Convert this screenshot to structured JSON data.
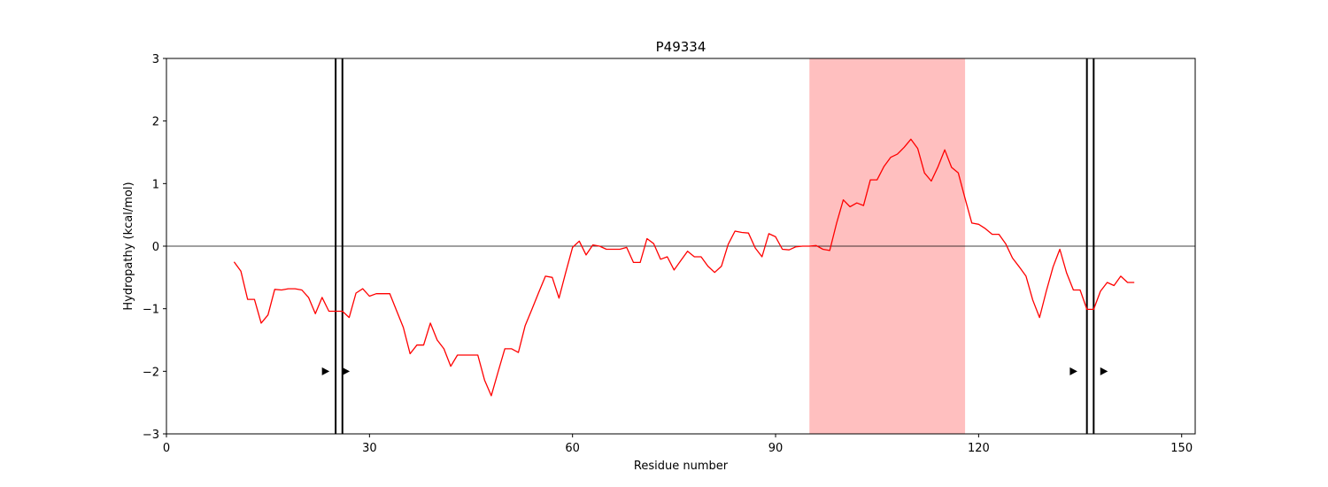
{
  "chart_data": {
    "type": "line",
    "title": "P49334",
    "xlabel": "Residue number",
    "ylabel": "Hydropathy (kcal/mol)",
    "xlim": [
      0,
      152
    ],
    "ylim": [
      -3,
      3
    ],
    "xticks": [
      0,
      30,
      60,
      90,
      120,
      150
    ],
    "yticks": [
      -3,
      -2,
      -1,
      0,
      1,
      2,
      3
    ],
    "ytick_labels": [
      "−3",
      "−2",
      "−1",
      "0",
      "1",
      "2",
      "3"
    ],
    "zero_line": 0,
    "line_color": "#ff0000",
    "highlight_color": "#ffbfbf",
    "highlight_region": [
      95,
      118
    ],
    "vertical_lines": [
      25,
      26,
      136,
      137
    ],
    "markers": [
      {
        "x": 23.5,
        "y": -2
      },
      {
        "x": 26.5,
        "y": -2
      },
      {
        "x": 134,
        "y": -2
      },
      {
        "x": 138.5,
        "y": -2
      }
    ],
    "series": [
      {
        "name": "hydropathy",
        "x": [
          10,
          11,
          12,
          13,
          14,
          15,
          16,
          17,
          18,
          19,
          20,
          21,
          22,
          23,
          24,
          25,
          26,
          27,
          28,
          29,
          30,
          31,
          32,
          33,
          34,
          35,
          36,
          37,
          38,
          39,
          40,
          41,
          42,
          43,
          44,
          45,
          46,
          47,
          48,
          49,
          50,
          51,
          52,
          53,
          54,
          55,
          56,
          57,
          58,
          59,
          60,
          61,
          62,
          63,
          64,
          65,
          66,
          67,
          68,
          69,
          70,
          71,
          72,
          73,
          74,
          75,
          76,
          77,
          78,
          79,
          80,
          81,
          82,
          83,
          84,
          85,
          86,
          87,
          88,
          89,
          90,
          91,
          92,
          93,
          94,
          95,
          96,
          97,
          98,
          99,
          100,
          101,
          102,
          103,
          104,
          105,
          106,
          107,
          108,
          109,
          110,
          111,
          112,
          113,
          114,
          115,
          116,
          117,
          118,
          119,
          120,
          121,
          122,
          123,
          124,
          125,
          126,
          127,
          128,
          129,
          130,
          131,
          132,
          133,
          134,
          135,
          136,
          137,
          138,
          139,
          140,
          141,
          142,
          143
        ],
        "values": [
          -0.25,
          -0.4,
          -0.85,
          -0.85,
          -1.23,
          -1.1,
          -0.69,
          -0.7,
          -0.68,
          -0.68,
          -0.7,
          -0.82,
          -1.08,
          -0.82,
          -1.04,
          -1.04,
          -1.04,
          -1.14,
          -0.75,
          -0.68,
          -0.8,
          -0.76,
          -0.76,
          -0.76,
          -1.03,
          -1.3,
          -1.72,
          -1.58,
          -1.58,
          -1.23,
          -1.5,
          -1.64,
          -1.92,
          -1.74,
          -1.74,
          -1.74,
          -1.74,
          -2.14,
          -2.39,
          -2.01,
          -1.64,
          -1.64,
          -1.7,
          -1.27,
          -1.01,
          -0.74,
          -0.48,
          -0.5,
          -0.83,
          -0.42,
          -0.02,
          0.08,
          -0.14,
          0.02,
          0.0,
          -0.05,
          -0.05,
          -0.05,
          -0.02,
          -0.26,
          -0.26,
          0.12,
          0.04,
          -0.21,
          -0.17,
          -0.38,
          -0.23,
          -0.08,
          -0.17,
          -0.17,
          -0.32,
          -0.42,
          -0.32,
          0.03,
          0.24,
          0.22,
          0.21,
          -0.03,
          -0.17,
          0.2,
          0.15,
          -0.05,
          -0.06,
          -0.01,
          0.0,
          0.0,
          0.01,
          -0.05,
          -0.07,
          0.36,
          0.74,
          0.63,
          0.69,
          0.65,
          1.06,
          1.06,
          1.27,
          1.42,
          1.47,
          1.58,
          1.71,
          1.56,
          1.17,
          1.04,
          1.27,
          1.54,
          1.26,
          1.17,
          0.76,
          0.37,
          0.35,
          0.28,
          0.19,
          0.19,
          0.04,
          -0.19,
          -0.33,
          -0.48,
          -0.86,
          -1.14,
          -0.72,
          -0.33,
          -0.05,
          -0.43,
          -0.7,
          -0.7,
          -1.01,
          -1.01,
          -0.72,
          -0.58,
          -0.63,
          -0.48,
          -0.58,
          -0.58
        ]
      }
    ]
  }
}
